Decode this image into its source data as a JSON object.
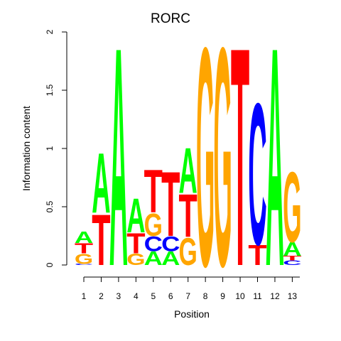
{
  "chart_data": {
    "type": "sequence-logo",
    "title": "RORC",
    "xlabel": "Position",
    "ylabel": "Information content",
    "ylim": [
      0,
      2
    ],
    "yticks": [
      {
        "value": 0,
        "label": "0"
      },
      {
        "value": 0.5,
        "label": "0.5"
      },
      {
        "value": 1,
        "label": "1"
      },
      {
        "value": 1.5,
        "label": "1.5"
      },
      {
        "value": 2,
        "label": "2"
      }
    ],
    "positions": [
      "1",
      "2",
      "3",
      "4",
      "5",
      "6",
      "7",
      "8",
      "9",
      "10",
      "11",
      "12",
      "13"
    ],
    "colors": {
      "A": "#00ff00",
      "C": "#0000ff",
      "G": "#ffa500",
      "T": "#ff0000"
    },
    "columns": [
      {
        "position": "1",
        "letters": [
          {
            "base": "C",
            "height": 0.01
          },
          {
            "base": "G",
            "height": 0.09
          },
          {
            "base": "T",
            "height": 0.09
          },
          {
            "base": "A",
            "height": 0.1
          }
        ]
      },
      {
        "position": "2",
        "letters": [
          {
            "base": "T",
            "height": 0.45
          },
          {
            "base": "A",
            "height": 0.53
          }
        ]
      },
      {
        "position": "3",
        "letters": [
          {
            "base": "A",
            "height": 1.93
          }
        ]
      },
      {
        "position": "4",
        "letters": [
          {
            "base": "G",
            "height": 0.1
          },
          {
            "base": "T",
            "height": 0.18
          },
          {
            "base": "A",
            "height": 0.3
          }
        ]
      },
      {
        "position": "5",
        "letters": [
          {
            "base": "A",
            "height": 0.12
          },
          {
            "base": "C",
            "height": 0.13
          },
          {
            "base": "G",
            "height": 0.2
          },
          {
            "base": "T",
            "height": 0.38
          }
        ]
      },
      {
        "position": "6",
        "letters": [
          {
            "base": "A",
            "height": 0.12
          },
          {
            "base": "C",
            "height": 0.13
          },
          {
            "base": "T",
            "height": 0.57
          }
        ]
      },
      {
        "position": "7",
        "letters": [
          {
            "base": "G",
            "height": 0.24
          },
          {
            "base": "T",
            "height": 0.38
          },
          {
            "base": "A",
            "height": 0.4
          }
        ]
      },
      {
        "position": "8",
        "letters": [
          {
            "base": "G",
            "height": 1.93
          }
        ]
      },
      {
        "position": "9",
        "letters": [
          {
            "base": "G",
            "height": 1.93
          }
        ]
      },
      {
        "position": "10",
        "letters": [
          {
            "base": "T",
            "height": 1.93
          }
        ]
      },
      {
        "position": "11",
        "letters": [
          {
            "base": "T",
            "height": 0.18
          },
          {
            "base": "C",
            "height": 1.25
          }
        ]
      },
      {
        "position": "12",
        "letters": [
          {
            "base": "A",
            "height": 1.93
          }
        ]
      },
      {
        "position": "13",
        "letters": [
          {
            "base": "C",
            "height": 0.04
          },
          {
            "base": "T",
            "height": 0.04
          },
          {
            "base": "A",
            "height": 0.12
          },
          {
            "base": "G",
            "height": 0.62
          }
        ]
      }
    ]
  }
}
